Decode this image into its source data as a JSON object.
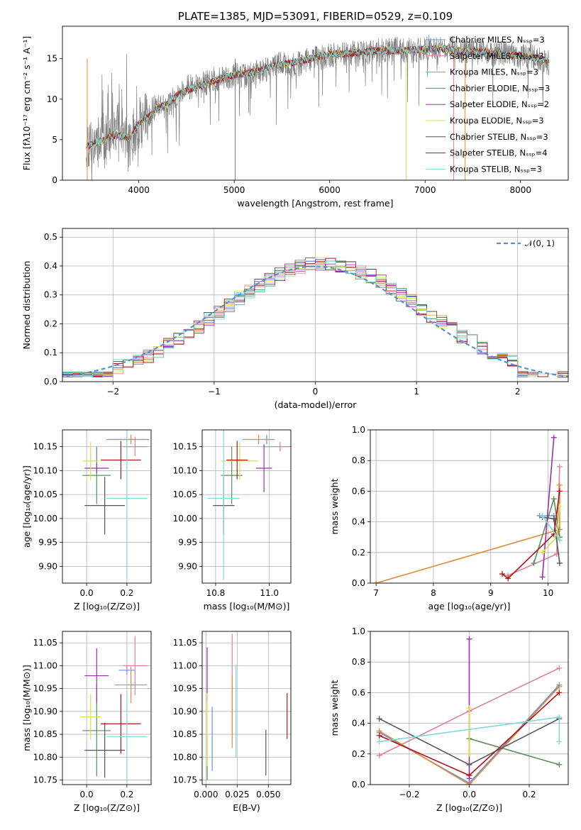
{
  "chart_data": [
    {
      "id": "spectrum",
      "type": "line",
      "title": "PLATE=1385, MJD=53091, FIBERID=0529, z=0.109",
      "xlabel": "wavelength [Angstrom, rest frame]",
      "ylabel": "Flux [fλ10⁻¹⁷ erg cm⁻² s⁻¹ A⁻¹]",
      "xlim": [
        3200,
        8500
      ],
      "ylim": [
        0,
        19
      ],
      "xticks": [
        4000,
        5000,
        6000,
        7000,
        8000
      ],
      "yticks": [
        0,
        5,
        10,
        15
      ],
      "grid": false,
      "legend_position": "top-right",
      "observed": {
        "x": [
          3450,
          3500,
          3550,
          3600,
          3650,
          3700,
          3750,
          3800,
          3850,
          3900,
          3950,
          4000,
          4100,
          4200,
          4300,
          4400,
          4500,
          4600,
          4700,
          4800,
          4900,
          5000,
          5100,
          5200,
          5300,
          5400,
          5500,
          5600,
          5700,
          5800,
          5900,
          6000,
          6100,
          6200,
          6300,
          6400,
          6500,
          6600,
          6700,
          6800,
          6900,
          7000,
          7100,
          7200,
          7300,
          7400,
          7500,
          7600,
          7700,
          7800,
          7900,
          8000,
          8100,
          8200,
          8300
        ],
        "y": [
          4.5,
          4.0,
          3.8,
          5.5,
          5.8,
          5.0,
          6.0,
          7.0,
          5.5,
          4.0,
          6.0,
          7.0,
          8.0,
          9.5,
          9.0,
          10.5,
          11.5,
          11.5,
          12.0,
          12.5,
          12.5,
          13.0,
          12.8,
          13.2,
          13.6,
          14.0,
          14.5,
          14.0,
          14.5,
          15.0,
          15.0,
          15.5,
          15.5,
          15.8,
          15.5,
          15.8,
          16.0,
          16.0,
          16.3,
          16.0,
          16.0,
          16.3,
          16.5,
          16.0,
          16.2,
          16.0,
          15.8,
          15.8,
          15.5,
          15.8,
          15.5,
          15.2,
          15.4,
          14.8,
          14.5
        ]
      },
      "model_x": [
        3450,
        3600,
        3750,
        3900,
        4000,
        4100,
        4200,
        4300,
        4400,
        4600,
        4800,
        5000,
        5200,
        5400,
        5600,
        5800,
        6000,
        6200,
        6400,
        6600,
        6800,
        7000,
        7200,
        7400,
        7600,
        7800,
        8000,
        8200,
        8300
      ],
      "model_y": [
        4.2,
        4.8,
        5.6,
        5.2,
        7.0,
        7.8,
        9.0,
        9.3,
        10.5,
        11.5,
        12.3,
        13.0,
        13.3,
        14.1,
        14.5,
        15.0,
        15.6,
        15.6,
        15.9,
        16.0,
        16.0,
        16.2,
        16.2,
        15.9,
        15.9,
        15.5,
        15.4,
        15.0,
        14.6
      ],
      "series": [
        {
          "name": "Chabrier MILES, Nₛₛₚ=3",
          "color": "#6a8fd8"
        },
        {
          "name": "Salpeter MILES, Nₛₛₚ=3",
          "color": "#e27f9e"
        },
        {
          "name": "Kroupa MILES, Nₛₛₚ=3",
          "color": "#e08a3a"
        },
        {
          "name": "Chabrier ELODIE, Nₛₛₚ=3",
          "color": "#5b8f5b"
        },
        {
          "name": "Salpeter ELODIE, Nₛₛₚ=2",
          "color": "#9b2fae"
        },
        {
          "name": "Kroupa ELODIE, Nₛₛₚ=3",
          "color": "#d6e34a"
        },
        {
          "name": "Chabrier STELIB, Nₛₛₚ=3",
          "color": "#555555"
        },
        {
          "name": "Salpeter STELIB, Nₛₛₚ=4",
          "color": "#b01818"
        },
        {
          "name": "Kroupa STELIB, Nₛₛₚ=3",
          "color": "#7fd8d8"
        }
      ]
    },
    {
      "id": "residuals",
      "type": "line",
      "xlabel": "(data-model)/error",
      "ylabel": "Normed distribution",
      "xlim": [
        -2.5,
        2.5
      ],
      "ylim": [
        0,
        0.53
      ],
      "xticks": [
        -2,
        -1,
        0,
        1,
        2
      ],
      "yticks": [
        0.0,
        0.1,
        0.2,
        0.3,
        0.4,
        0.5
      ],
      "grid": true,
      "legend_position": "top-right",
      "reference": {
        "name": "𝒩(0, 1)",
        "mean": 0,
        "sigma": 1,
        "color": "#5b8fd4"
      },
      "bin_width": 0.1
    },
    {
      "id": "age-vs-Z",
      "type": "scatter",
      "xlabel": "Z [log₁₀(Z/Z⊙)]",
      "ylabel": "age  [log₁₀(age/yr)]",
      "xlim": [
        -0.12,
        0.32
      ],
      "ylim": [
        9.865,
        10.185
      ],
      "xticks": [
        0.0,
        0.2
      ],
      "yticks": [
        9.9,
        9.95,
        10.0,
        10.05,
        10.1,
        10.15
      ],
      "grid": true,
      "points": [
        {
          "series": "Chabrier MILES",
          "color": "#6a8fd8",
          "x": 0.2,
          "xerr": 0.1,
          "y": 10.165,
          "yerr": 0.005
        },
        {
          "series": "Salpeter MILES",
          "color": "#e27f9e",
          "x": 0.24,
          "xerr": 0.06,
          "y": 10.15,
          "yerr": 0.02
        },
        {
          "series": "Kroupa MILES",
          "color": "#e08a3a",
          "x": 0.22,
          "xerr": 0.09,
          "y": 10.165,
          "yerr": 0.01
        },
        {
          "series": "Chabrier ELODIE",
          "color": "#5b8f5b",
          "x": 0.05,
          "xerr": 0.07,
          "y": 10.09,
          "yerr": 0.06
        },
        {
          "series": "Salpeter ELODIE",
          "color": "#9b2fae",
          "x": 0.05,
          "xerr": 0.06,
          "y": 10.105,
          "yerr": 0.01
        },
        {
          "series": "Kroupa ELODIE",
          "color": "#d6e34a",
          "x": 0.02,
          "xerr": 0.04,
          "y": 10.12,
          "yerr": 0.04
        },
        {
          "series": "Chabrier STELIB",
          "color": "#555555",
          "x": 0.09,
          "xerr": 0.1,
          "y": 10.027,
          "yerr": 0.06
        },
        {
          "series": "Salpeter STELIB",
          "color": "#b01818",
          "x": 0.17,
          "xerr": 0.1,
          "y": 10.122,
          "yerr": 0.04
        },
        {
          "series": "Kroupa STELIB",
          "color": "#7fd8d8",
          "x": 0.2,
          "xerr": 0.1,
          "y": 10.042,
          "yerr": 0.17
        }
      ]
    },
    {
      "id": "age-vs-mass",
      "type": "scatter",
      "xlabel": "mass [log₁₀(M/M⊙)]",
      "ylabel": "",
      "xlim": [
        10.75,
        11.08
      ],
      "ylim": [
        9.865,
        10.185
      ],
      "xticks": [
        10.8,
        11.0
      ],
      "yticks": [
        9.9,
        9.95,
        10.0,
        10.05,
        10.1,
        10.15
      ],
      "grid": true,
      "points": [
        {
          "series": "Chabrier MILES",
          "color": "#6a8fd8",
          "x": 10.99,
          "xerr": 0.01,
          "y": 10.165,
          "yerr": 0.01
        },
        {
          "series": "Salpeter MILES",
          "color": "#e27f9e",
          "x": 11.04,
          "xerr": 0.06,
          "y": 10.15,
          "yerr": 0.01
        },
        {
          "series": "Kroupa MILES",
          "color": "#e08a3a",
          "x": 10.96,
          "xerr": 0.06,
          "y": 10.165,
          "yerr": 0.01
        },
        {
          "series": "Chabrier ELODIE",
          "color": "#5b8f5b",
          "x": 10.86,
          "xerr": 0.04,
          "y": 10.09,
          "yerr": 0.06
        },
        {
          "series": "Salpeter ELODIE",
          "color": "#9b2fae",
          "x": 10.98,
          "xerr": 0.03,
          "y": 10.105,
          "yerr": 0.05
        },
        {
          "series": "Kroupa ELODIE",
          "color": "#d6e34a",
          "x": 10.89,
          "xerr": 0.07,
          "y": 10.12,
          "yerr": 0.04
        },
        {
          "series": "Chabrier STELIB",
          "color": "#555555",
          "x": 10.83,
          "xerr": 0.04,
          "y": 10.027,
          "yerr": 0.06
        },
        {
          "series": "Salpeter STELIB",
          "color": "#b01818",
          "x": 10.88,
          "xerr": 0.04,
          "y": 10.122,
          "yerr": 0.04
        },
        {
          "series": "Kroupa STELIB",
          "color": "#7fd8d8",
          "x": 10.83,
          "xerr": 0.06,
          "y": 10.042,
          "yerr": 0.17
        }
      ]
    },
    {
      "id": "weight-vs-age",
      "type": "line",
      "xlabel": "age  [log₁₀(age/yr)]",
      "ylabel": "mass weight",
      "xlim": [
        6.9,
        10.35
      ],
      "ylim": [
        0,
        1.0
      ],
      "xticks": [
        7,
        8,
        9,
        10
      ],
      "yticks": [
        0.0,
        0.2,
        0.4,
        0.6,
        0.8,
        1.0
      ],
      "grid": true,
      "series": [
        {
          "name": "Chabrier MILES",
          "color": "#6a8fd8",
          "x": [
            9.85,
            10.1,
            10.2
          ],
          "y": [
            0.44,
            0.44,
            0.3
          ]
        },
        {
          "name": "Salpeter MILES",
          "color": "#e27f9e",
          "x": [
            9.3,
            10.15,
            10.2
          ],
          "y": [
            0.05,
            0.19,
            0.76
          ]
        },
        {
          "name": "Kroupa MILES",
          "color": "#e08a3a",
          "x": [
            7.0,
            10.2,
            10.2
          ],
          "y": [
            0.0,
            0.35,
            0.64
          ]
        },
        {
          "name": "Chabrier ELODIE",
          "color": "#5b8f5b",
          "x": [
            9.75,
            10.1,
            10.2
          ],
          "y": [
            0.13,
            0.55,
            0.3
          ]
        },
        {
          "name": "Salpeter ELODIE",
          "color": "#9b2fae",
          "x": [
            9.9,
            10.1
          ],
          "y": [
            0.04,
            0.95
          ]
        },
        {
          "name": "Kroupa ELODIE",
          "color": "#d6e34a",
          "x": [
            9.9,
            10.15,
            10.2
          ],
          "y": [
            0.2,
            0.3,
            0.5
          ]
        },
        {
          "name": "Chabrier STELIB",
          "color": "#555555",
          "x": [
            9.9,
            10.1,
            10.2
          ],
          "y": [
            0.43,
            0.42,
            0.13
          ]
        },
        {
          "name": "Salpeter STELIB",
          "color": "#b01818",
          "x": [
            9.2,
            9.3,
            10.1,
            10.2
          ],
          "y": [
            0.06,
            0.03,
            0.32,
            0.6
          ]
        },
        {
          "name": "Kroupa STELIB",
          "color": "#7fd8d8",
          "x": [
            9.9,
            10.2
          ],
          "y": [
            0.44,
            0.28
          ]
        }
      ]
    },
    {
      "id": "mass-vs-Z",
      "type": "scatter",
      "xlabel": "Z [log₁₀(Z/Z⊙)]",
      "ylabel": "mass [log₁₀(M/M⊙)]",
      "xlim": [
        -0.12,
        0.32
      ],
      "ylim": [
        10.74,
        11.075
      ],
      "xticks": [
        0.0,
        0.2
      ],
      "yticks": [
        10.75,
        10.8,
        10.85,
        10.9,
        10.95,
        11.0,
        11.05
      ],
      "grid": true,
      "points": [
        {
          "series": "Chabrier MILES",
          "color": "#6a8fd8",
          "x": 0.2,
          "xerr": 0.04,
          "y": 10.99,
          "yerr": 0.01
        },
        {
          "series": "Salpeter MILES",
          "color": "#e27f9e",
          "x": 0.24,
          "xerr": 0.06,
          "y": 11.0,
          "yerr": 0.065
        },
        {
          "series": "Kroupa MILES",
          "color": "#e08a3a",
          "x": 0.22,
          "xerr": 0.08,
          "y": 10.958,
          "yerr": 0.04
        },
        {
          "series": "Chabrier ELODIE",
          "color": "#5b8f5b",
          "x": 0.05,
          "xerr": 0.07,
          "y": 10.858,
          "yerr": 0.1
        },
        {
          "series": "Salpeter ELODIE",
          "color": "#9b2fae",
          "x": 0.05,
          "xerr": 0.06,
          "y": 10.978,
          "yerr": 0.06
        },
        {
          "series": "Kroupa ELODIE",
          "color": "#d6e34a",
          "x": 0.02,
          "xerr": 0.05,
          "y": 10.888,
          "yerr": 0.05
        },
        {
          "series": "Chabrier STELIB",
          "color": "#555555",
          "x": 0.09,
          "xerr": 0.1,
          "y": 10.815,
          "yerr": 0.06
        },
        {
          "series": "Salpeter STELIB",
          "color": "#b01818",
          "x": 0.17,
          "xerr": 0.1,
          "y": 10.873,
          "yerr": 0.065
        },
        {
          "series": "Kroupa STELIB",
          "color": "#7fd8d8",
          "x": 0.2,
          "xerr": 0.1,
          "y": 10.845,
          "yerr": 0.1
        }
      ]
    },
    {
      "id": "mass-vs-EBV",
      "type": "scatter",
      "xlabel": "E(B-V)",
      "ylabel": "",
      "xlim": [
        -0.003,
        0.068
      ],
      "ylim": [
        10.74,
        11.075
      ],
      "xticks": [
        0.0,
        0.025,
        0.05
      ],
      "yticks": [
        10.75,
        10.8,
        10.85,
        10.9,
        10.95,
        11.0,
        11.05
      ],
      "grid": true,
      "points": [
        {
          "series": "Chabrier MILES",
          "color": "#6a8fd8",
          "x": 0.005,
          "y": 10.84,
          "yerr": 0.07
        },
        {
          "series": "Salpeter MILES",
          "color": "#e27f9e",
          "x": 0.021,
          "y": 10.96,
          "yerr": 0.11
        },
        {
          "series": "Kroupa MILES",
          "color": "#e08a3a",
          "x": 0.021,
          "y": 10.9,
          "yerr": 0.08
        },
        {
          "series": "Chabrier ELODIE",
          "color": "#5b8f5b",
          "x": 0.001,
          "y": 10.8,
          "yerr": 0.05
        },
        {
          "series": "Salpeter ELODIE",
          "color": "#9b2fae",
          "x": 0.001,
          "y": 10.98,
          "yerr": 0.06
        },
        {
          "series": "Kroupa ELODIE",
          "color": "#d6e34a",
          "x": 0.001,
          "y": 10.86,
          "yerr": 0.08
        },
        {
          "series": "Chabrier STELIB",
          "color": "#555555",
          "x": 0.048,
          "y": 10.81,
          "yerr": 0.05
        },
        {
          "series": "Salpeter STELIB",
          "color": "#b01818",
          "x": 0.065,
          "y": 10.89,
          "yerr": 0.05
        },
        {
          "series": "Kroupa STELIB",
          "color": "#7fd8d8",
          "x": 0.024,
          "y": 10.9,
          "yerr": 0.1
        }
      ]
    },
    {
      "id": "weight-vs-Z",
      "type": "line",
      "xlabel": "Z [log₁₀(Z/Z⊙)]",
      "ylabel": "mass weight",
      "xlim": [
        -0.33,
        0.33
      ],
      "ylim": [
        0,
        1.0
      ],
      "xticks": [
        -0.2,
        0.0,
        0.2
      ],
      "yticks": [
        0.0,
        0.2,
        0.4,
        0.6,
        0.8,
        1.0
      ],
      "grid": true,
      "series": [
        {
          "name": "Chabrier MILES",
          "color": "#6a8fd8",
          "x": [
            -0.3,
            0.0,
            0.3
          ],
          "y": [
            0.34,
            0.01,
            0.65
          ]
        },
        {
          "name": "Salpeter MILES",
          "color": "#e27f9e",
          "x": [
            -0.3,
            0.0,
            0.3
          ],
          "y": [
            0.19,
            0.48,
            0.76
          ]
        },
        {
          "name": "Kroupa MILES",
          "color": "#e08a3a",
          "x": [
            -0.3,
            0.0,
            0.3
          ],
          "y": [
            0.35,
            0.0,
            0.64
          ]
        },
        {
          "name": "Chabrier ELODIE",
          "color": "#5b8f5b",
          "x": [
            0.0,
            0.3
          ],
          "y": [
            0.3,
            0.13
          ]
        },
        {
          "name": "Salpeter ELODIE",
          "color": "#9b2fae",
          "x": [
            0.0,
            0.0
          ],
          "y": [
            0.04,
            0.95
          ]
        },
        {
          "name": "Kroupa ELODIE",
          "color": "#d6e34a",
          "x": [
            0.0,
            0.0
          ],
          "y": [
            0.2,
            0.5
          ]
        },
        {
          "name": "Chabrier STELIB",
          "color": "#555555",
          "x": [
            -0.3,
            0.0,
            0.3
          ],
          "y": [
            0.43,
            0.13,
            0.43
          ]
        },
        {
          "name": "Salpeter STELIB",
          "color": "#b01818",
          "x": [
            -0.3,
            0.0,
            0.3
          ],
          "y": [
            0.32,
            0.06,
            0.6
          ]
        },
        {
          "name": "Kroupa STELIB",
          "color": "#7fd8d8",
          "x": [
            -0.3,
            0.3,
            0.3
          ],
          "y": [
            0.28,
            0.44,
            0.28
          ]
        }
      ]
    }
  ]
}
